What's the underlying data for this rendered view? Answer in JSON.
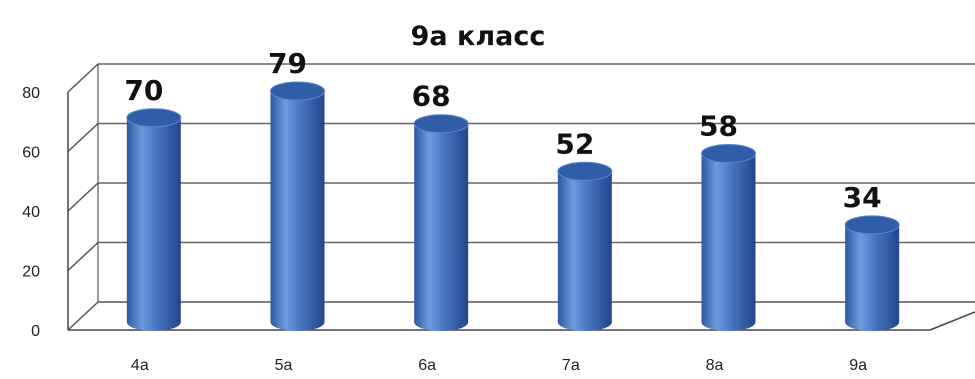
{
  "chart_data": {
    "type": "bar",
    "title": "9а класс",
    "categories": [
      "4а",
      "5а",
      "6а",
      "7а",
      "8а",
      "9а"
    ],
    "values": [
      70,
      79,
      68,
      52,
      58,
      34
    ],
    "ylim": [
      0,
      80
    ],
    "yticks": [
      0,
      20,
      40,
      60,
      80
    ],
    "grid": true,
    "legend": "none",
    "bar_color": "#4a7cc8",
    "bar_top_color": "#2f5da8"
  }
}
